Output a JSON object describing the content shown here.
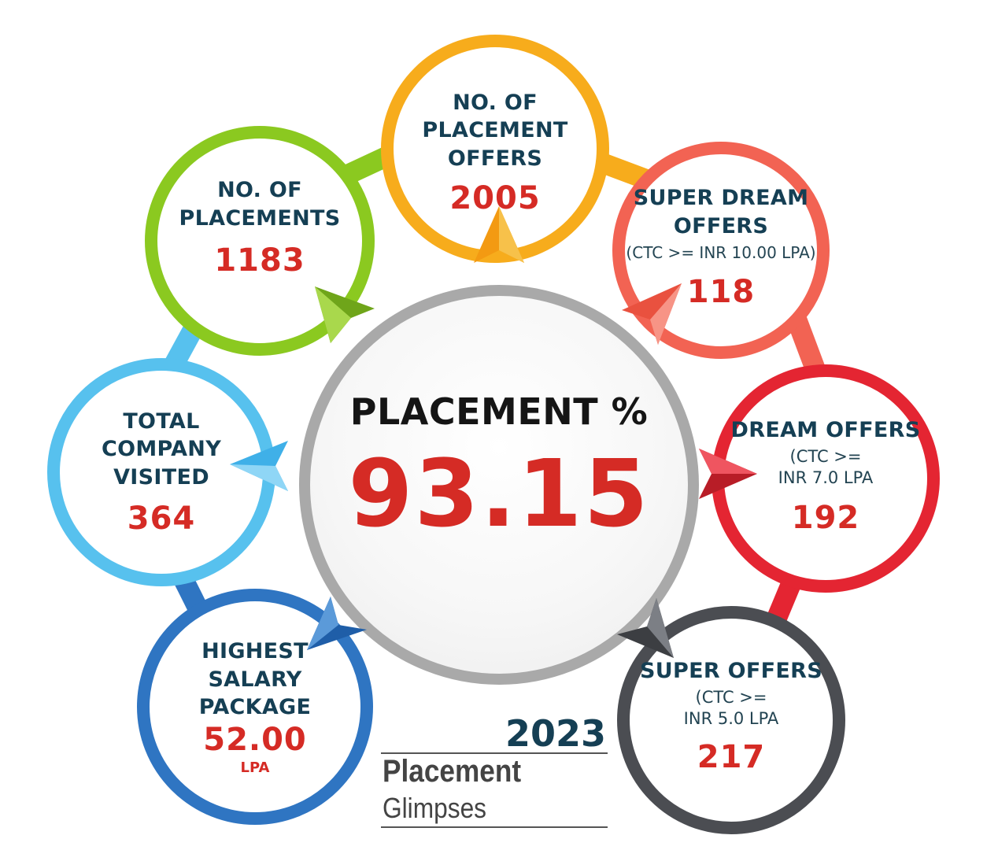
{
  "center": {
    "title": "PLACEMENT %",
    "value": "93.15"
  },
  "stats": {
    "placement_offers": {
      "label": "NO. OF\nPLACEMENT\nOFFERS",
      "value": "2005",
      "color": "#f7ac1c"
    },
    "placements": {
      "label": "NO. OF\nPLACEMENTS",
      "value": "1183",
      "color": "#8bc920"
    },
    "super_dream": {
      "label": "SUPER DREAM\nOFFERS",
      "note": "(CTC >= INR 10.00 LPA)",
      "value": "118",
      "color": "#f26353"
    },
    "company": {
      "label": "TOTAL\nCOMPANY\nVISITED",
      "value": "364",
      "color": "#57c1ee"
    },
    "dream": {
      "label": "DREAM OFFERS",
      "note": "(CTC >=\nINR 7.0 LPA",
      "value": "192",
      "color": "#e42532"
    },
    "highest": {
      "label": "HIGHEST\nSALARY\nPACKAGE",
      "value": "52.00",
      "unit": "LPA",
      "color": "#2f75c2"
    },
    "super": {
      "label": "SUPER OFFERS",
      "note": "(CTC >=\nINR 5.0 LPA",
      "value": "217",
      "color": "#4b4d52"
    }
  },
  "brand": {
    "year": "2023",
    "title": "Placement",
    "subtitle": "Glimpses"
  }
}
